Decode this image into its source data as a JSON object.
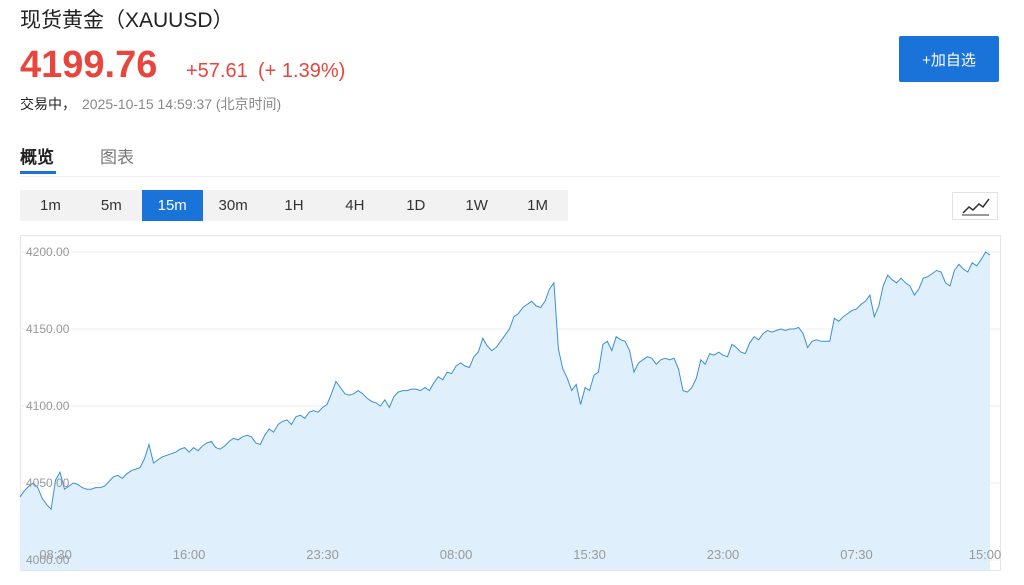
{
  "header": {
    "title": "现货黄金（XAUUSD）",
    "price": "4199.76",
    "change": "+57.61",
    "change_pct": "(+ 1.39%)",
    "status": "交易中，",
    "timestamp": "2025-10-15 14:59:37 (北京时间)",
    "watch_button": "+加自选"
  },
  "tabs": [
    "概览",
    "图表"
  ],
  "active_tab": 0,
  "intervals": [
    "1m",
    "5m",
    "15m",
    "30m",
    "1H",
    "4H",
    "1D",
    "1W",
    "1M"
  ],
  "active_interval": 2,
  "chart": {
    "type": "area",
    "color": "#3a8fd6",
    "fill": "#dff0fc",
    "grid": true,
    "ylim": [
      3993.5,
      4210.4
    ],
    "yticks": [
      {
        "value": 4000,
        "label": "4000.00"
      },
      {
        "value": 4050,
        "label": "4050.00"
      },
      {
        "value": 4100,
        "label": "4100.00"
      },
      {
        "value": 4150,
        "label": "4150.00"
      },
      {
        "value": 4200,
        "label": "4200.00"
      }
    ],
    "categories": [
      null,
      null,
      null,
      null,
      null,
      null,
      null,
      null,
      "08:30",
      null,
      null,
      null,
      null,
      null,
      null,
      null,
      null,
      null,
      null,
      null,
      null,
      null,
      null,
      null,
      null,
      null,
      null,
      null,
      null,
      null,
      null,
      null,
      null,
      null,
      null,
      null,
      null,
      null,
      "16:00",
      null,
      null,
      null,
      null,
      null,
      null,
      null,
      null,
      null,
      null,
      null,
      null,
      null,
      null,
      null,
      null,
      null,
      null,
      null,
      null,
      null,
      null,
      null,
      null,
      null,
      null,
      null,
      null,
      null,
      "23:30",
      null,
      null,
      null,
      null,
      null,
      null,
      null,
      null,
      null,
      null,
      null,
      null,
      null,
      null,
      null,
      null,
      null,
      null,
      null,
      null,
      null,
      null,
      null,
      null,
      null,
      null,
      null,
      null,
      null,
      "08:00",
      null,
      null,
      null,
      null,
      null,
      null,
      null,
      null,
      null,
      null,
      null,
      null,
      null,
      null,
      null,
      null,
      null,
      null,
      null,
      null,
      null,
      null,
      null,
      null,
      null,
      null,
      null,
      null,
      null,
      "15:30",
      null,
      null,
      null,
      null,
      null,
      null,
      null,
      null,
      null,
      null,
      null,
      null,
      null,
      null,
      null,
      null,
      null,
      null,
      null,
      null,
      null,
      null,
      null,
      null,
      null,
      null,
      null,
      null,
      null,
      "23:00",
      null,
      null,
      null,
      null,
      null,
      null,
      null,
      null,
      null,
      null,
      null,
      null,
      null,
      null,
      null,
      null,
      null,
      null,
      null,
      null,
      null,
      null,
      null,
      null,
      null,
      null,
      null,
      null,
      null,
      "07:30",
      null,
      null,
      null,
      null,
      null,
      null,
      null,
      null,
      null,
      null,
      null,
      null,
      null,
      null,
      null,
      null,
      null,
      null,
      null,
      null,
      null,
      null,
      null,
      null,
      null,
      null,
      null,
      null,
      null,
      "15:00"
    ],
    "values": [
      4041,
      4045,
      4048,
      4050,
      4047,
      4040,
      4036,
      4033,
      4052,
      4057,
      4046,
      4048,
      4050,
      4049,
      4047,
      4046,
      4046,
      4047,
      4047,
      4048,
      4051,
      4054,
      4055,
      4053,
      4056,
      4058,
      4059,
      4060,
      4066,
      4075,
      4063,
      4065,
      4067,
      4068,
      4069,
      4070,
      4072,
      4073,
      4070,
      4073,
      4071,
      4074,
      4076,
      4077,
      4073,
      4072,
      4074,
      4077,
      4079,
      4078,
      4080,
      4081,
      4080,
      4076,
      4075,
      4081,
      4085,
      4083,
      4088,
      4090,
      4091,
      4088,
      4093,
      4094,
      4092,
      4096,
      4097,
      4096,
      4099,
      4101,
      4108,
      4116,
      4112,
      4108,
      4107,
      4108,
      4110,
      4108,
      4105,
      4103,
      4102,
      4100,
      4104,
      4099,
      4106,
      4109,
      4110,
      4110,
      4111,
      4111,
      4110,
      4112,
      4110,
      4115,
      4119,
      4117,
      4122,
      4121,
      4126,
      4128,
      4126,
      4125,
      4132,
      4135,
      4144,
      4139,
      4136,
      4138,
      4142,
      4146,
      4150,
      4158,
      4160,
      4164,
      4166,
      4168,
      4165,
      4164,
      4168,
      4176,
      4180,
      4137,
      4124,
      4118,
      4110,
      4114,
      4101,
      4112,
      4110,
      4120,
      4122,
      4140,
      4142,
      4136,
      4145,
      4143,
      4142,
      4136,
      4122,
      4128,
      4130,
      4132,
      4131,
      4127,
      4130,
      4131,
      4130,
      4131,
      4124,
      4110,
      4109,
      4112,
      4118,
      4130,
      4127,
      4134,
      4133,
      4135,
      4133,
      4132,
      4140,
      4138,
      4135,
      4134,
      4141,
      4145,
      4143,
      4147,
      4149,
      4148,
      4149,
      4150,
      4149,
      4150,
      4150,
      4151,
      4147,
      4138,
      4142,
      4143,
      4142,
      4142,
      4142,
      4157,
      4155,
      4158,
      4160,
      4162,
      4163,
      4166,
      4168,
      4172,
      4158,
      4165,
      4178,
      4185,
      4182,
      4180,
      4183,
      4180,
      4178,
      4172,
      4176,
      4183,
      4184,
      4186,
      4188,
      4187,
      4180,
      4178,
      4188,
      4192,
      4189,
      4187,
      4193,
      4191,
      4195,
      4200,
      4198
    ]
  }
}
